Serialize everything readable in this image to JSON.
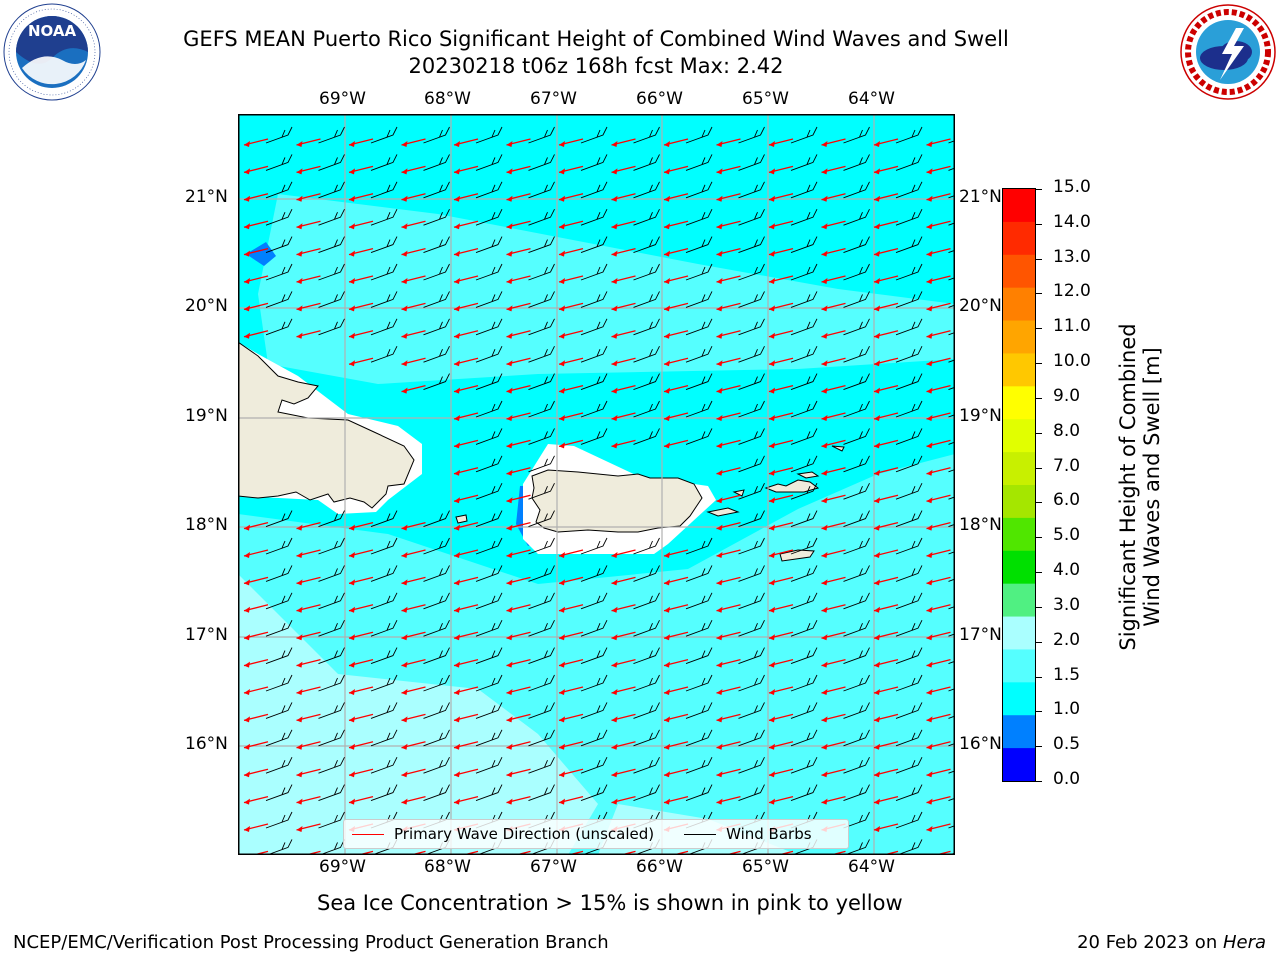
{
  "header": {
    "title_line1": "GEFS MEAN Puerto Rico Significant Height of Combined Wind Waves and Swell",
    "title_line2": "20230218 t06z 168h fcst   Max: 2.42"
  },
  "logos": {
    "left": {
      "name": "NOAA",
      "ring_text": "NATIONAL OCEANIC AND ATMOSPHERIC ADMINISTRATION · U.S. DEPARTMENT OF COMMERCE"
    },
    "right": {
      "name": "NATIONAL WEATHER SERVICE"
    }
  },
  "map": {
    "lon_ticks": [
      "69°W",
      "68°W",
      "67°W",
      "66°W",
      "65°W",
      "64°W"
    ],
    "lat_ticks": [
      "21°N",
      "20°N",
      "19°N",
      "18°N",
      "17°N",
      "16°N"
    ],
    "land_color": "#efecdc",
    "arrow_color": "#ff0000",
    "barb_color": "#000000"
  },
  "legend": {
    "items": [
      {
        "label": "Primary Wave Direction (unscaled)",
        "color": "#ff0000"
      },
      {
        "label": "Wind Barbs",
        "color": "#000000"
      }
    ]
  },
  "colorbar": {
    "title_line1": "Significant Height of Combined",
    "title_line2": "Wind Waves and Swell [m]",
    "labels": [
      "15.0",
      "14.0",
      "13.0",
      "12.0",
      "11.0",
      "10.0",
      "9.0",
      "8.0",
      "7.0",
      "6.0",
      "5.0",
      "4.0",
      "3.0",
      "2.0",
      "1.5",
      "1.0",
      "0.5",
      "0.0"
    ],
    "colors_top_to_bottom": [
      "#ff0000",
      "#ff2a00",
      "#ff5500",
      "#ff8000",
      "#ffa500",
      "#ffc800",
      "#ffff00",
      "#e1ff00",
      "#c8f000",
      "#a5e600",
      "#50e600",
      "#00e000",
      "#50f082",
      "#aaffff",
      "#55ffff",
      "#00ffff",
      "#0080ff",
      "#0000ff"
    ]
  },
  "caption": "Sea Ice Concentration > 15% is shown in pink to yellow",
  "footer": {
    "left": "NCEP/EMC/Verification Post Processing Product Generation Branch",
    "right_prefix": "20 Feb 2023 on ",
    "right_host": "Hera"
  }
}
